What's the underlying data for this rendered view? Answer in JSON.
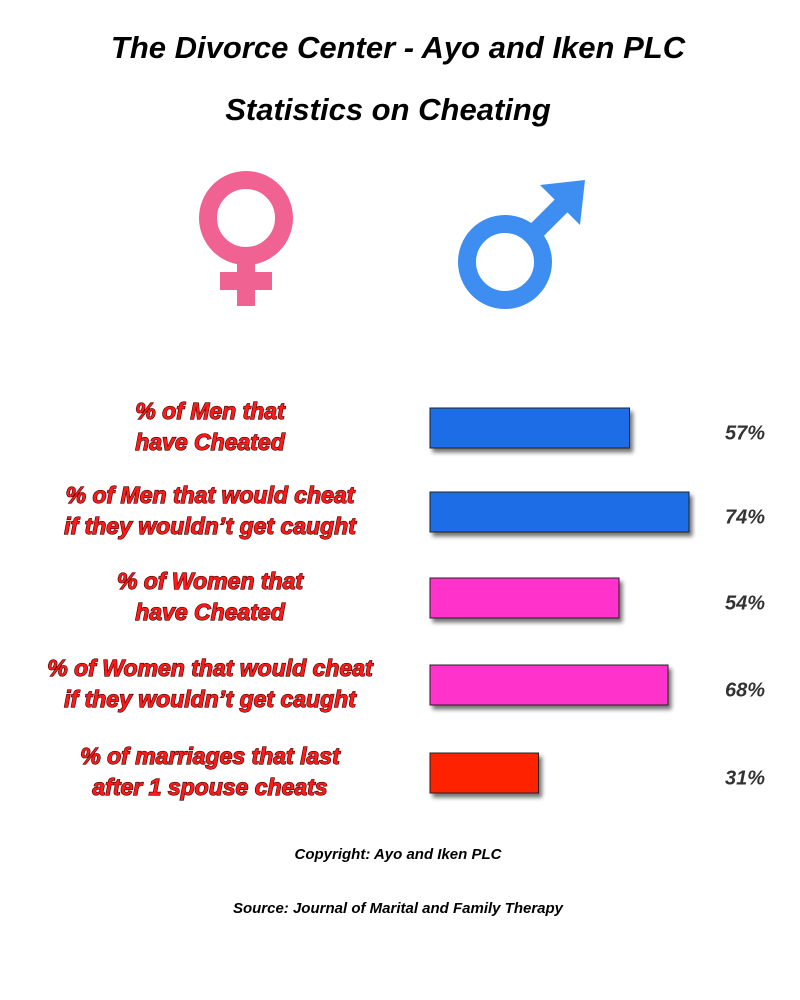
{
  "chart_data": {
    "type": "bar",
    "title": "The Divorce Center - Ayo and Iken PLC",
    "subtitle": "Statistics on Cheating",
    "categories": [
      [
        "% of Men that",
        "have Cheated"
      ],
      [
        "% of Men that would cheat",
        "if they wouldn’t get caught"
      ],
      [
        "% of Women that",
        "have Cheated"
      ],
      [
        "% of Women that would cheat",
        "if they wouldn’t get caught"
      ],
      [
        "% of marriages that last",
        "after 1 spouse cheats"
      ]
    ],
    "values": [
      57,
      74,
      54,
      68,
      31
    ],
    "value_labels": [
      "57%",
      "74%",
      "54%",
      "68%",
      "31%"
    ],
    "colors": [
      "#1a6de6",
      "#1a6de6",
      "#ff33cc",
      "#ff33cc",
      "#ff2200"
    ],
    "copyright": "Copyright: Ayo and Iken PLC",
    "source": "Source: Journal of Marital and Family Therapy"
  }
}
